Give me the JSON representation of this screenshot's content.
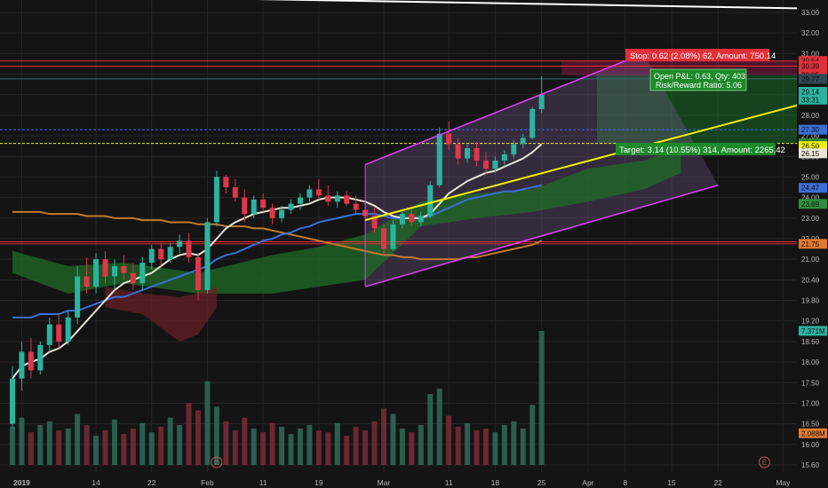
{
  "colors": {
    "background": "#141414",
    "grid": "#262626",
    "up_candle": "#2bb3a0",
    "down_candle": "#e0364a",
    "volume_up": "#2e6b58",
    "volume_down": "#7a2a38",
    "channel": "#e040fb",
    "trendline": "#f2f200",
    "ma_short": "#e8e4d8",
    "ma_mid": "#3b6fd6",
    "ma_long": "#c07a30",
    "ma_slow": "#8a7a30",
    "cloud_green": "#1f6b25",
    "cloud_red": "#6b1f26",
    "stop_zone": "#c2185b",
    "target_zone": "#1b7a2a",
    "resistance_red": "#e0303a",
    "text": "#b8b8b8"
  },
  "chart_data": {
    "type": "candlestick",
    "title": "",
    "price_axis": {
      "ticks": [
        "33.00",
        "32.00",
        "31.00",
        "30.00",
        "29.00",
        "28.00",
        "27.00",
        "26.00",
        "25.00",
        "24.00",
        "23.00",
        "22.00",
        "21.00",
        "20.40",
        "19.80",
        "19.20",
        "18.60",
        "18.00",
        "17.50",
        "17.00",
        "16.50",
        "16.00",
        "15.60"
      ],
      "tick_values": [
        33.0,
        32.0,
        31.0,
        30.0,
        29.0,
        28.0,
        27.0,
        26.0,
        25.0,
        24.0,
        23.0,
        22.0,
        21.0,
        20.4,
        19.8,
        19.2,
        18.6,
        18.0,
        17.5,
        17.0,
        16.5,
        16.0,
        15.6
      ]
    },
    "time_axis": {
      "labels": [
        {
          "label": "2019",
          "bold": true
        },
        {
          "label": "14",
          "bold": false
        },
        {
          "label": "22",
          "bold": false
        },
        {
          "label": "Feb",
          "bold": false
        },
        {
          "label": "11",
          "bold": false
        },
        {
          "label": "19",
          "bold": false
        },
        {
          "label": "Mar",
          "bold": false
        },
        {
          "label": "11",
          "bold": false
        },
        {
          "label": "18",
          "bold": false
        },
        {
          "label": "25",
          "bold": false
        },
        {
          "label": "Apr",
          "bold": false
        },
        {
          "label": "8",
          "bold": false
        },
        {
          "label": "15",
          "bold": false
        },
        {
          "label": "22",
          "bold": false
        },
        {
          "label": "May",
          "bold": false
        }
      ],
      "label_index": [
        1,
        9,
        15,
        21,
        27,
        33,
        40,
        47,
        52,
        57,
        62,
        66,
        71,
        76,
        83
      ]
    },
    "price_badges": [
      {
        "label": "30.64",
        "value": 30.64,
        "color": "#e0303a"
      },
      {
        "label": "30.39",
        "value": 30.39,
        "color": "#e0303a"
      },
      {
        "label": "29.95",
        "value": 29.95,
        "color": "#e0303a"
      },
      {
        "label": "29.77",
        "value": 29.77,
        "color": "#2e4a52"
      },
      {
        "label": "29.14",
        "value": 29.14,
        "color": "#2bb3a0"
      },
      {
        "label": "33:31",
        "value": 28.76,
        "color": "#2bb3a0"
      },
      {
        "label": "27.30",
        "value": 27.3,
        "color": "#3b6fd6"
      },
      {
        "label": "26.63",
        "value": 26.63,
        "color": "#2f8f3a"
      },
      {
        "label": "26.50",
        "value": 26.5,
        "color": "#f2f200"
      },
      {
        "label": "26.15",
        "value": 26.15,
        "color": "#e8e4d8"
      },
      {
        "label": "24.47",
        "value": 24.47,
        "color": "#3b6fd6"
      },
      {
        "label": "23.69",
        "value": 23.69,
        "color": "#2f8f3a"
      },
      {
        "label": "21.75",
        "value": 21.75,
        "color": "#e07a30"
      },
      {
        "label": "7.371M",
        "value": 18.91,
        "color": "#2bb3a0"
      },
      {
        "label": "2.088M",
        "value": 16.27,
        "color": "#e07a30"
      }
    ],
    "horizontal_levels": [
      {
        "value": 30.64,
        "color": "#e0303a"
      },
      {
        "value": 30.39,
        "color": "#e0303a"
      },
      {
        "value": 29.77,
        "color": "#2e6a72"
      },
      {
        "value": 27.3,
        "color": "#3b6fd6",
        "dashed": true
      },
      {
        "value": 26.63,
        "color": "#f2f200",
        "dashed": true
      },
      {
        "value": 21.85,
        "color": "#e0303a"
      },
      {
        "value": 21.75,
        "color": "#e0303a"
      }
    ],
    "candles": [
      [
        16.5,
        17.9,
        16.4,
        17.6
      ],
      [
        17.6,
        18.6,
        17.3,
        18.3
      ],
      [
        18.3,
        18.7,
        17.6,
        17.8
      ],
      [
        17.8,
        18.6,
        17.7,
        18.5
      ],
      [
        18.5,
        19.3,
        18.3,
        19.1
      ],
      [
        19.1,
        19.4,
        18.4,
        18.6
      ],
      [
        18.6,
        19.5,
        18.5,
        19.3
      ],
      [
        19.3,
        20.8,
        19.1,
        20.5
      ],
      [
        20.5,
        21.1,
        20.0,
        20.2
      ],
      [
        20.2,
        21.3,
        20.0,
        21.0
      ],
      [
        21.0,
        21.4,
        20.3,
        20.5
      ],
      [
        20.5,
        21.0,
        20.1,
        20.8
      ],
      [
        20.8,
        21.2,
        20.4,
        20.6
      ],
      [
        20.6,
        20.9,
        20.1,
        20.3
      ],
      [
        20.3,
        21.1,
        20.1,
        20.9
      ],
      [
        20.9,
        21.7,
        20.7,
        21.5
      ],
      [
        21.5,
        21.8,
        20.8,
        21.0
      ],
      [
        21.0,
        21.8,
        20.9,
        21.6
      ],
      [
        21.6,
        22.2,
        21.3,
        21.9
      ],
      [
        21.9,
        22.3,
        20.9,
        21.1
      ],
      [
        21.1,
        21.3,
        19.8,
        20.1
      ],
      [
        20.1,
        23.0,
        20.0,
        22.8
      ],
      [
        22.8,
        25.3,
        22.6,
        25.0
      ],
      [
        25.0,
        25.1,
        24.2,
        24.5
      ],
      [
        24.5,
        24.9,
        23.8,
        24.0
      ],
      [
        24.0,
        24.4,
        22.8,
        23.2
      ],
      [
        23.2,
        24.1,
        23.0,
        23.9
      ],
      [
        23.9,
        24.2,
        23.3,
        23.5
      ],
      [
        23.5,
        23.7,
        22.7,
        23.0
      ],
      [
        23.0,
        23.6,
        22.8,
        23.4
      ],
      [
        23.4,
        23.9,
        23.2,
        23.7
      ],
      [
        23.7,
        24.2,
        23.4,
        24.0
      ],
      [
        24.0,
        24.6,
        23.8,
        24.4
      ],
      [
        24.4,
        24.9,
        23.9,
        24.1
      ],
      [
        24.1,
        24.6,
        23.6,
        23.8
      ],
      [
        23.8,
        24.3,
        23.5,
        24.1
      ],
      [
        24.1,
        24.3,
        23.6,
        23.7
      ],
      [
        23.7,
        24.1,
        23.2,
        23.4
      ],
      [
        23.4,
        23.8,
        22.9,
        23.1
      ],
      [
        23.1,
        23.5,
        22.3,
        22.5
      ],
      [
        22.5,
        22.7,
        21.2,
        21.5
      ],
      [
        21.5,
        22.9,
        21.4,
        22.7
      ],
      [
        22.7,
        23.4,
        22.5,
        23.2
      ],
      [
        23.2,
        23.4,
        22.6,
        22.8
      ],
      [
        22.8,
        23.3,
        22.6,
        23.1
      ],
      [
        23.1,
        24.8,
        23.0,
        24.6
      ],
      [
        24.6,
        27.4,
        24.5,
        27.1
      ],
      [
        27.1,
        27.7,
        26.3,
        26.6
      ],
      [
        26.6,
        26.9,
        25.6,
        25.9
      ],
      [
        25.9,
        26.6,
        25.7,
        26.4
      ],
      [
        26.4,
        26.7,
        25.5,
        25.8
      ],
      [
        25.8,
        26.2,
        25.1,
        25.4
      ],
      [
        25.4,
        26.0,
        25.2,
        25.8
      ],
      [
        25.8,
        26.3,
        25.5,
        26.1
      ],
      [
        26.1,
        26.8,
        25.9,
        26.6
      ],
      [
        26.6,
        27.1,
        26.4,
        26.9
      ],
      [
        26.9,
        28.4,
        26.8,
        28.3
      ],
      [
        28.3,
        29.9,
        28.1,
        29.0
      ]
    ],
    "volume": [
      2.1,
      2.6,
      1.8,
      2.2,
      2.4,
      1.9,
      2.0,
      2.8,
      2.2,
      1.6,
      1.9,
      2.5,
      1.7,
      2.0,
      2.3,
      1.8,
      2.1,
      2.6,
      2.2,
      3.4,
      3.0,
      4.6,
      3.2,
      2.4,
      1.9,
      2.6,
      2.0,
      1.8,
      2.3,
      2.1,
      1.7,
      2.0,
      2.2,
      1.9,
      1.8,
      2.3,
      1.6,
      2.1,
      1.9,
      2.4,
      3.1,
      2.8,
      2.0,
      1.8,
      2.2,
      3.9,
      4.2,
      2.7,
      2.1,
      2.3,
      1.9,
      2.0,
      1.8,
      2.2,
      2.4,
      2.0,
      3.3,
      7.37
    ],
    "ma_short": [
      17.6,
      17.9,
      18.0,
      18.1,
      18.3,
      18.4,
      18.6,
      18.9,
      19.2,
      19.5,
      19.8,
      20.1,
      20.3,
      20.4,
      20.5,
      20.6,
      20.8,
      21.0,
      21.2,
      21.3,
      21.2,
      21.5,
      22.0,
      22.5,
      22.8,
      23.0,
      23.2,
      23.3,
      23.4,
      23.5,
      23.5,
      23.6,
      23.7,
      23.9,
      24.0,
      24.0,
      24.0,
      23.9,
      23.8,
      23.6,
      23.3,
      23.1,
      23.0,
      23.0,
      23.0,
      23.2,
      23.7,
      24.2,
      24.5,
      24.8,
      25.0,
      25.2,
      25.3,
      25.5,
      25.7,
      25.9,
      26.2,
      26.6
    ],
    "ma_mid": [
      19.3,
      19.3,
      19.3,
      19.4,
      19.4,
      19.4,
      19.5,
      19.5,
      19.6,
      19.7,
      19.8,
      19.9,
      19.9,
      20.0,
      20.1,
      20.2,
      20.3,
      20.4,
      20.5,
      20.6,
      20.7,
      20.8,
      21.0,
      21.2,
      21.3,
      21.5,
      21.7,
      21.9,
      22.0,
      22.2,
      22.3,
      22.5,
      22.6,
      22.8,
      22.9,
      23.0,
      23.1,
      23.2,
      23.2,
      23.2,
      23.1,
      23.0,
      23.0,
      23.0,
      23.0,
      23.1,
      23.3,
      23.5,
      23.7,
      23.9,
      24.0,
      24.1,
      24.2,
      24.3,
      24.3,
      24.4,
      24.5,
      24.6
    ],
    "ma_long": [
      23.3,
      23.3,
      23.3,
      23.3,
      23.2,
      23.2,
      23.2,
      23.2,
      23.1,
      23.1,
      23.1,
      23.0,
      23.0,
      23.0,
      22.9,
      22.9,
      22.9,
      22.8,
      22.8,
      22.8,
      22.7,
      22.7,
      22.7,
      22.6,
      22.6,
      22.6,
      22.5,
      22.5,
      22.4,
      22.3,
      22.2,
      22.1,
      22.0,
      21.9,
      21.8,
      21.7,
      21.6,
      21.5,
      21.4,
      21.3,
      21.2,
      21.2,
      21.1,
      21.1,
      21.0,
      21.0,
      21.0,
      21.0,
      21.0,
      21.1,
      21.1,
      21.2,
      21.3,
      21.4,
      21.5,
      21.6,
      21.7,
      21.9
    ],
    "trendline": {
      "from": [
        38,
        22.9
      ],
      "to": [
        88,
        28.9
      ]
    },
    "channel_upper": {
      "from": [
        38,
        25.6
      ],
      "to": [
        68,
        31.0
      ]
    },
    "channel_lower": {
      "from": [
        38,
        20.2
      ],
      "to": [
        76,
        24.6
      ]
    },
    "position_box": {
      "entry": 26.63,
      "stop": 30.64,
      "target": 26.63
    },
    "annotations": {
      "stop": "Stop: 0.62 (2.08%) 62, Amount: 750.14",
      "open_pl": "Open P&L: 0.63, Qty: 403",
      "risk_reward": "Risk/Reward Ratio: 5.06",
      "target": "Target: 3.14 (10.55%) 314, Amount: 2265.42"
    },
    "event_markers": [
      {
        "label": "E",
        "index": 22
      },
      {
        "label": "E",
        "index": 81
      }
    ]
  }
}
